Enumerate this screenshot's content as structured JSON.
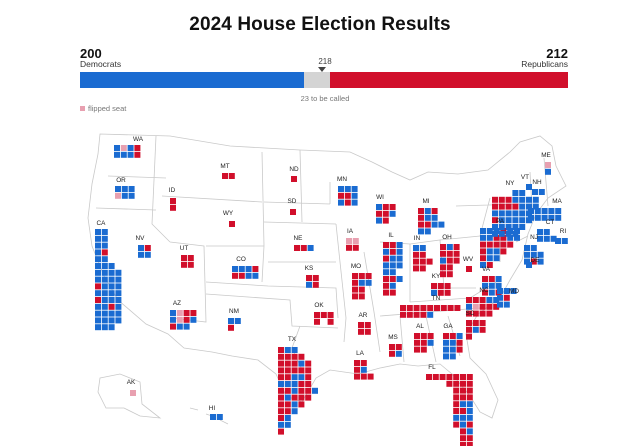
{
  "title": "2024 House Election Results",
  "democrats": {
    "count": "200",
    "label": "Democrats",
    "seats": 200
  },
  "republicans": {
    "count": "212",
    "label": "Republicans",
    "seats": 212
  },
  "majority": {
    "label": "218",
    "seats": 218
  },
  "uncalled": {
    "label": "23 to be called",
    "seats": 23
  },
  "legend": {
    "flipped_label": "flipped seat"
  },
  "colors": {
    "dem": "#1a6bd1",
    "rep": "#d10f2b",
    "uncalled": "#d4d4d4",
    "flipped": "#e8a0b0"
  },
  "states": [
    {
      "abbr": "WA"
    },
    {
      "abbr": "OR"
    },
    {
      "abbr": "CA"
    },
    {
      "abbr": "ID"
    },
    {
      "abbr": "NV"
    },
    {
      "abbr": "MT"
    },
    {
      "abbr": "WY"
    },
    {
      "abbr": "UT"
    },
    {
      "abbr": "AZ"
    },
    {
      "abbr": "CO"
    },
    {
      "abbr": "NM"
    },
    {
      "abbr": "ND"
    },
    {
      "abbr": "SD"
    },
    {
      "abbr": "NE"
    },
    {
      "abbr": "KS"
    },
    {
      "abbr": "OK"
    },
    {
      "abbr": "TX"
    },
    {
      "abbr": "MN"
    },
    {
      "abbr": "IA"
    },
    {
      "abbr": "MO"
    },
    {
      "abbr": "AR"
    },
    {
      "abbr": "LA"
    },
    {
      "abbr": "WI"
    },
    {
      "abbr": "IL"
    },
    {
      "abbr": "MI"
    },
    {
      "abbr": "IN"
    },
    {
      "abbr": "OH"
    },
    {
      "abbr": "KY"
    },
    {
      "abbr": "TN"
    },
    {
      "abbr": "MS"
    },
    {
      "abbr": "AL"
    },
    {
      "abbr": "GA"
    },
    {
      "abbr": "FL"
    },
    {
      "abbr": "SC"
    },
    {
      "abbr": "NC"
    },
    {
      "abbr": "VA"
    },
    {
      "abbr": "WV"
    },
    {
      "abbr": "PA"
    },
    {
      "abbr": "NY"
    },
    {
      "abbr": "VT"
    },
    {
      "abbr": "NH"
    },
    {
      "abbr": "ME"
    },
    {
      "abbr": "MA"
    },
    {
      "abbr": "CT"
    },
    {
      "abbr": "RI"
    },
    {
      "abbr": "NJ"
    },
    {
      "abbr": "DE"
    },
    {
      "abbr": "MD"
    },
    {
      "abbr": "AK"
    },
    {
      "abbr": "HI"
    }
  ]
}
